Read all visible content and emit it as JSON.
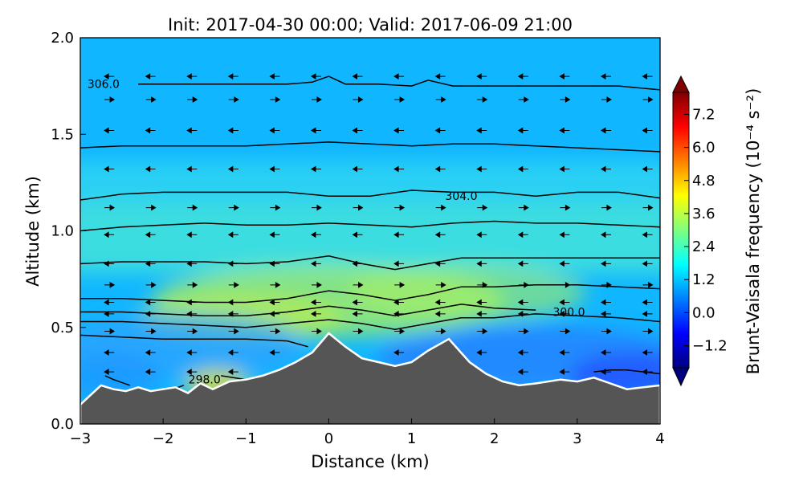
{
  "chart_data": {
    "type": "heatmap",
    "title": "Init: 2017-04-30 00:00; Valid: 2017-06-09 21:00",
    "xlabel": "Distance (km)",
    "ylabel": "Altitude (km)",
    "xlim": [
      -3,
      4
    ],
    "ylim": [
      0,
      2.0
    ],
    "x_ticks": [
      -3,
      -2,
      -1,
      0,
      1,
      2,
      3,
      4
    ],
    "x_tick_labels": [
      "−3",
      "−2",
      "−1",
      "0",
      "1",
      "2",
      "3",
      "4"
    ],
    "y_ticks": [
      0.0,
      0.5,
      1.0,
      1.5,
      2.0
    ],
    "y_tick_labels": [
      "0.0",
      "0.5",
      "1.0",
      "1.5",
      "2.0"
    ],
    "colorbar": {
      "label": "Brunt-Vaisala frequency (10⁻⁴ s⁻²)",
      "range": [
        -2.0,
        8.0
      ],
      "ticks": [
        -1.2,
        0.0,
        1.2,
        2.4,
        3.6,
        4.8,
        6.0,
        7.2
      ],
      "tick_labels": [
        "−1.2",
        "0.0",
        "1.2",
        "2.4",
        "3.6",
        "4.8",
        "6.0",
        "7.2"
      ],
      "colormap": "jet",
      "extend": "both"
    },
    "terrain": {
      "color": "#555555",
      "x": [
        -3.0,
        -2.9,
        -2.75,
        -2.6,
        -2.45,
        -2.3,
        -2.15,
        -2.0,
        -1.85,
        -1.7,
        -1.55,
        -1.4,
        -1.2,
        -1.0,
        -0.8,
        -0.6,
        -0.4,
        -0.2,
        0.0,
        0.2,
        0.4,
        0.6,
        0.8,
        1.0,
        1.2,
        1.45,
        1.7,
        1.9,
        2.1,
        2.3,
        2.5,
        2.8,
        3.0,
        3.2,
        3.4,
        3.6,
        3.8,
        4.0
      ],
      "altitude": [
        0.1,
        0.14,
        0.2,
        0.18,
        0.17,
        0.19,
        0.17,
        0.18,
        0.19,
        0.16,
        0.21,
        0.18,
        0.22,
        0.23,
        0.25,
        0.28,
        0.32,
        0.37,
        0.47,
        0.4,
        0.34,
        0.32,
        0.3,
        0.32,
        0.38,
        0.44,
        0.32,
        0.26,
        0.22,
        0.2,
        0.21,
        0.23,
        0.22,
        0.24,
        0.21,
        0.18,
        0.19,
        0.2
      ]
    },
    "theta_contours": [
      {
        "label": "298.0",
        "x": [
          -1.95,
          -1.75
        ],
        "altitude": [
          0.17,
          0.2
        ]
      },
      {
        "label": "",
        "x": [
          -1.3,
          -1.0
        ],
        "altitude": [
          0.25,
          0.23
        ]
      },
      {
        "x": [
          -2.7,
          -2.6,
          -2.4
        ],
        "altitude": [
          0.25,
          0.23,
          0.2
        ]
      },
      {
        "x": [
          3.2,
          3.4,
          3.6,
          3.8,
          4.0
        ],
        "altitude": [
          0.27,
          0.28,
          0.28,
          0.27,
          0.26
        ]
      },
      {
        "label": "",
        "x": [
          -3.0,
          -2.5,
          -2.0,
          -1.5,
          -1.0,
          -0.5,
          -0.25
        ],
        "altitude": [
          0.46,
          0.45,
          0.44,
          0.44,
          0.44,
          0.43,
          0.4
        ]
      },
      {
        "x": [
          -3.0,
          -2.5,
          -2.0,
          -1.5,
          -1.0,
          -0.5,
          0.0,
          0.4,
          0.8,
          1.2,
          1.6,
          2.0,
          2.5,
          3.0,
          3.5,
          4.0
        ],
        "altitude": [
          0.53,
          0.53,
          0.52,
          0.51,
          0.5,
          0.52,
          0.54,
          0.52,
          0.49,
          0.52,
          0.55,
          0.55,
          0.57,
          0.56,
          0.55,
          0.53
        ]
      },
      {
        "label": "300.0",
        "x": [
          -3.0,
          -2.5,
          -2.0,
          -1.5,
          -1.0,
          -0.5,
          0.0,
          0.4,
          0.8,
          1.2,
          1.6,
          2.0,
          2.5
        ],
        "altitude": [
          0.58,
          0.58,
          0.57,
          0.56,
          0.56,
          0.58,
          0.61,
          0.59,
          0.56,
          0.59,
          0.62,
          0.6,
          0.59
        ]
      },
      {
        "x": [
          -3.0,
          -2.5,
          -2.0,
          -1.5,
          -1.0,
          -0.5,
          0.0,
          0.4,
          0.8,
          1.2,
          1.6,
          2.0,
          2.5,
          3.0,
          3.5,
          4.0
        ],
        "altitude": [
          0.65,
          0.65,
          0.64,
          0.63,
          0.63,
          0.65,
          0.69,
          0.67,
          0.64,
          0.67,
          0.71,
          0.71,
          0.72,
          0.72,
          0.71,
          0.7
        ]
      },
      {
        "x": [
          -3.0,
          -2.5,
          -2.0,
          -1.5,
          -1.0,
          -0.5,
          0.0,
          0.4,
          0.8,
          1.2,
          1.6,
          2.0,
          2.5,
          3.0,
          3.5,
          4.0
        ],
        "altitude": [
          0.83,
          0.84,
          0.84,
          0.84,
          0.83,
          0.84,
          0.87,
          0.83,
          0.8,
          0.83,
          0.86,
          0.86,
          0.86,
          0.86,
          0.86,
          0.86
        ]
      },
      {
        "x": [
          -3.0,
          -2.5,
          -2.0,
          -1.5,
          -1.0,
          -0.5,
          0.0,
          0.5,
          1.0,
          1.5,
          2.0,
          2.5,
          3.0,
          3.5,
          4.0
        ],
        "altitude": [
          1.0,
          1.02,
          1.03,
          1.04,
          1.03,
          1.03,
          1.04,
          1.03,
          1.02,
          1.04,
          1.05,
          1.04,
          1.04,
          1.03,
          1.02
        ]
      },
      {
        "label": "304.0",
        "x": [
          -3.0,
          -2.5,
          -2.0,
          -1.5,
          -1.0,
          -0.5,
          0.0,
          0.5,
          1.0,
          1.5,
          2.0,
          2.5,
          3.0,
          3.5,
          4.0
        ],
        "altitude": [
          1.16,
          1.19,
          1.2,
          1.2,
          1.2,
          1.2,
          1.18,
          1.18,
          1.21,
          1.2,
          1.2,
          1.18,
          1.2,
          1.2,
          1.17
        ]
      },
      {
        "x": [
          -3.0,
          -2.5,
          -2.0,
          -1.5,
          -1.0,
          -0.5,
          0.0,
          0.5,
          1.0,
          1.5,
          2.0,
          2.5,
          3.0,
          3.5,
          4.0
        ],
        "altitude": [
          1.43,
          1.44,
          1.44,
          1.44,
          1.44,
          1.45,
          1.46,
          1.45,
          1.44,
          1.45,
          1.45,
          1.44,
          1.43,
          1.42,
          1.41
        ]
      },
      {
        "label": "306.0",
        "x": [
          -2.3,
          -2.0,
          -1.5,
          -1.0,
          -0.5,
          -0.2,
          0.0,
          0.2,
          0.6,
          1.0,
          1.2,
          1.5,
          2.0,
          2.5,
          3.0,
          3.5,
          4.0
        ],
        "altitude": [
          1.76,
          1.76,
          1.76,
          1.76,
          1.76,
          1.77,
          1.8,
          1.76,
          1.76,
          1.75,
          1.78,
          1.75,
          1.75,
          1.75,
          1.75,
          1.75,
          1.73
        ]
      }
    ]
  }
}
